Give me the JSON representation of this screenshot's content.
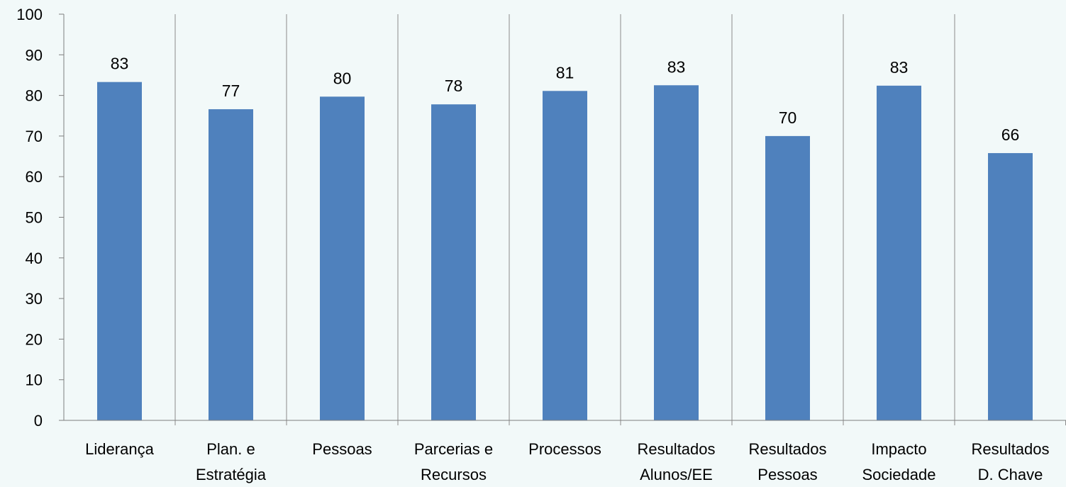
{
  "chart_data": {
    "type": "bar",
    "categories": [
      [
        "Liderança"
      ],
      [
        "Plan. e",
        "Estratégia"
      ],
      [
        "Pessoas"
      ],
      [
        "Parcerias e",
        "Recursos"
      ],
      [
        "Processos"
      ],
      [
        "Resultados",
        "Alunos/EE"
      ],
      [
        "Resultados",
        "Pessoas"
      ],
      [
        "Impacto",
        "Sociedade"
      ],
      [
        "Resultados",
        "D. Chave"
      ]
    ],
    "values": [
      83,
      77,
      80,
      78,
      81,
      83,
      70,
      83,
      66
    ],
    "bar_heights": [
      83.3,
      76.6,
      79.7,
      77.8,
      81.1,
      82.5,
      70.0,
      82.4,
      65.8
    ],
    "title": "",
    "xlabel": "",
    "ylabel": "",
    "ylim": [
      0,
      100
    ],
    "yticks": [
      0,
      10,
      20,
      30,
      40,
      50,
      60,
      70,
      80,
      90,
      100
    ],
    "grid": "vertical-category-separators",
    "legend": "none",
    "bar_color": "#4f81bd"
  }
}
